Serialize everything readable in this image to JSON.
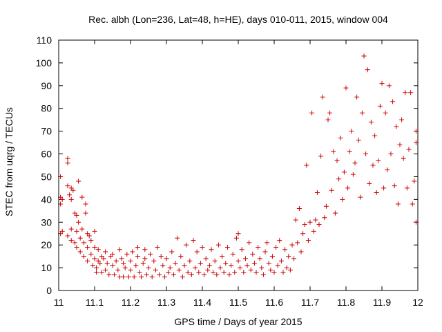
{
  "chart_data": {
    "type": "scatter",
    "title": "Rec. albh (Lon=236, Lat=48, h=HE), days 010-011, 2015, window 004",
    "xlabel": "GPS time / Days of year 2015",
    "ylabel": "STEC from uqrg / TECUs",
    "xlim": [
      11,
      12
    ],
    "ylim": [
      0,
      110
    ],
    "xticks": [
      "11",
      "11.1",
      "11.2",
      "11.3",
      "11.4",
      "11.5",
      "11.6",
      "11.7",
      "11.8",
      "11.9",
      "12"
    ],
    "yticks": [
      "0",
      "10",
      "20",
      "30",
      "40",
      "50",
      "60",
      "70",
      "80",
      "90",
      "100",
      "110"
    ],
    "grid": false,
    "legend": "none",
    "marker": "+",
    "color": "#cc0000",
    "points": [
      [
        11.005,
        50
      ],
      [
        11.005,
        41
      ],
      [
        11.005,
        38
      ],
      [
        11.005,
        25
      ],
      [
        11.01,
        40
      ],
      [
        11.01,
        26
      ],
      [
        11.025,
        58
      ],
      [
        11.025,
        56
      ],
      [
        11.025,
        46
      ],
      [
        11.025,
        24
      ],
      [
        11.03,
        42
      ],
      [
        11.035,
        45
      ],
      [
        11.035,
        40
      ],
      [
        11.035,
        27
      ],
      [
        11.035,
        22
      ],
      [
        11.04,
        44
      ],
      [
        11.045,
        34
      ],
      [
        11.045,
        21
      ],
      [
        11.05,
        33
      ],
      [
        11.05,
        26
      ],
      [
        11.05,
        19
      ],
      [
        11.055,
        48
      ],
      [
        11.055,
        30
      ],
      [
        11.06,
        23
      ],
      [
        11.06,
        17
      ],
      [
        11.065,
        41
      ],
      [
        11.065,
        27
      ],
      [
        11.07,
        21
      ],
      [
        11.07,
        15
      ],
      [
        11.075,
        38
      ],
      [
        11.075,
        34
      ],
      [
        11.08,
        25
      ],
      [
        11.08,
        19
      ],
      [
        11.08,
        13
      ],
      [
        11.085,
        24
      ],
      [
        11.09,
        22
      ],
      [
        11.09,
        16
      ],
      [
        11.095,
        11
      ],
      [
        11.1,
        26
      ],
      [
        11.1,
        19
      ],
      [
        11.1,
        14
      ],
      [
        11.105,
        10
      ],
      [
        11.105,
        8
      ],
      [
        11.11,
        13
      ],
      [
        11.11,
        18
      ],
      [
        11.115,
        12
      ],
      [
        11.12,
        8
      ],
      [
        11.12,
        15
      ],
      [
        11.125,
        14
      ],
      [
        11.13,
        9
      ],
      [
        11.13,
        17
      ],
      [
        11.135,
        12
      ],
      [
        11.14,
        7
      ],
      [
        11.145,
        15
      ],
      [
        11.15,
        11
      ],
      [
        11.15,
        16
      ],
      [
        11.155,
        7
      ],
      [
        11.16,
        13
      ],
      [
        11.165,
        9
      ],
      [
        11.17,
        6
      ],
      [
        11.17,
        18
      ],
      [
        11.175,
        14
      ],
      [
        11.18,
        6
      ],
      [
        11.18,
        12
      ],
      [
        11.185,
        10
      ],
      [
        11.19,
        16
      ],
      [
        11.195,
        6
      ],
      [
        11.2,
        13
      ],
      [
        11.2,
        9
      ],
      [
        11.205,
        17
      ],
      [
        11.21,
        6
      ],
      [
        11.215,
        11
      ],
      [
        11.22,
        19
      ],
      [
        11.22,
        15
      ],
      [
        11.225,
        8
      ],
      [
        11.23,
        6
      ],
      [
        11.235,
        12
      ],
      [
        11.24,
        18
      ],
      [
        11.24,
        14
      ],
      [
        11.245,
        7
      ],
      [
        11.25,
        10
      ],
      [
        11.255,
        16
      ],
      [
        11.26,
        6
      ],
      [
        11.265,
        13
      ],
      [
        11.27,
        9
      ],
      [
        11.275,
        19
      ],
      [
        11.28,
        7
      ],
      [
        11.285,
        15
      ],
      [
        11.29,
        11
      ],
      [
        11.295,
        6
      ],
      [
        11.3,
        14
      ],
      [
        11.305,
        8
      ],
      [
        11.31,
        10
      ],
      [
        11.315,
        17
      ],
      [
        11.32,
        7
      ],
      [
        11.325,
        12
      ],
      [
        11.33,
        23
      ],
      [
        11.335,
        9
      ],
      [
        11.34,
        15
      ],
      [
        11.345,
        6
      ],
      [
        11.35,
        11
      ],
      [
        11.355,
        20
      ],
      [
        11.36,
        8
      ],
      [
        11.365,
        13
      ],
      [
        11.37,
        7
      ],
      [
        11.375,
        22
      ],
      [
        11.38,
        10
      ],
      [
        11.385,
        17
      ],
      [
        11.39,
        8
      ],
      [
        11.395,
        12
      ],
      [
        11.4,
        19
      ],
      [
        11.405,
        7
      ],
      [
        11.41,
        14
      ],
      [
        11.415,
        9
      ],
      [
        11.42,
        11
      ],
      [
        11.425,
        18
      ],
      [
        11.43,
        8
      ],
      [
        11.435,
        13
      ],
      [
        11.44,
        7
      ],
      [
        11.445,
        20
      ],
      [
        11.45,
        10
      ],
      [
        11.455,
        15
      ],
      [
        11.46,
        8
      ],
      [
        11.465,
        12
      ],
      [
        11.47,
        19
      ],
      [
        11.475,
        7
      ],
      [
        11.48,
        11
      ],
      [
        11.485,
        16
      ],
      [
        11.49,
        8
      ],
      [
        11.495,
        23
      ],
      [
        11.5,
        13
      ],
      [
        11.5,
        25
      ],
      [
        11.505,
        10
      ],
      [
        11.51,
        18
      ],
      [
        11.515,
        8
      ],
      [
        11.52,
        14
      ],
      [
        11.525,
        11
      ],
      [
        11.53,
        21
      ],
      [
        11.535,
        9
      ],
      [
        11.54,
        16
      ],
      [
        11.545,
        12
      ],
      [
        11.55,
        8
      ],
      [
        11.555,
        19
      ],
      [
        11.56,
        14
      ],
      [
        11.565,
        10
      ],
      [
        11.57,
        7
      ],
      [
        11.575,
        17
      ],
      [
        11.58,
        21
      ],
      [
        11.585,
        12
      ],
      [
        11.59,
        9
      ],
      [
        11.595,
        15
      ],
      [
        11.6,
        8
      ],
      [
        11.605,
        19
      ],
      [
        11.61,
        11
      ],
      [
        11.615,
        22
      ],
      [
        11.62,
        13
      ],
      [
        11.625,
        8
      ],
      [
        11.63,
        18
      ],
      [
        11.635,
        10
      ],
      [
        11.64,
        15
      ],
      [
        11.645,
        9
      ],
      [
        11.65,
        20
      ],
      [
        11.655,
        14
      ],
      [
        11.66,
        31
      ],
      [
        11.665,
        21
      ],
      [
        11.67,
        36
      ],
      [
        11.675,
        17
      ],
      [
        11.68,
        25
      ],
      [
        11.685,
        29
      ],
      [
        11.69,
        55
      ],
      [
        11.695,
        22
      ],
      [
        11.7,
        30
      ],
      [
        11.705,
        78
      ],
      [
        11.71,
        26
      ],
      [
        11.715,
        31
      ],
      [
        11.72,
        43
      ],
      [
        11.725,
        29
      ],
      [
        11.73,
        59
      ],
      [
        11.735,
        85
      ],
      [
        11.74,
        32
      ],
      [
        11.745,
        37
      ],
      [
        11.75,
        75
      ],
      [
        11.755,
        78
      ],
      [
        11.76,
        44
      ],
      [
        11.765,
        61
      ],
      [
        11.77,
        34
      ],
      [
        11.775,
        57
      ],
      [
        11.78,
        49
      ],
      [
        11.785,
        67
      ],
      [
        11.79,
        40
      ],
      [
        11.795,
        52
      ],
      [
        11.8,
        89
      ],
      [
        11.805,
        45
      ],
      [
        11.81,
        61
      ],
      [
        11.815,
        70
      ],
      [
        11.82,
        51
      ],
      [
        11.825,
        56
      ],
      [
        11.83,
        85
      ],
      [
        11.835,
        66
      ],
      [
        11.84,
        41
      ],
      [
        11.845,
        78
      ],
      [
        11.85,
        103
      ],
      [
        11.855,
        60
      ],
      [
        11.86,
        97
      ],
      [
        11.865,
        47
      ],
      [
        11.87,
        74
      ],
      [
        11.875,
        55
      ],
      [
        11.88,
        68
      ],
      [
        11.885,
        43
      ],
      [
        11.89,
        57
      ],
      [
        11.895,
        81
      ],
      [
        11.9,
        91
      ],
      [
        11.905,
        45
      ],
      [
        11.91,
        78
      ],
      [
        11.915,
        53
      ],
      [
        11.92,
        90
      ],
      [
        11.925,
        60
      ],
      [
        11.93,
        83
      ],
      [
        11.935,
        46
      ],
      [
        11.94,
        72
      ],
      [
        11.945,
        38
      ],
      [
        11.95,
        64
      ],
      [
        11.955,
        75
      ],
      [
        11.96,
        58
      ],
      [
        11.965,
        87
      ],
      [
        11.97,
        45
      ],
      [
        11.975,
        62
      ],
      [
        11.98,
        87
      ],
      [
        11.985,
        38
      ],
      [
        11.99,
        48
      ],
      [
        11.995,
        30
      ],
      [
        11.995,
        70
      ],
      [
        11.995,
        65
      ]
    ]
  }
}
